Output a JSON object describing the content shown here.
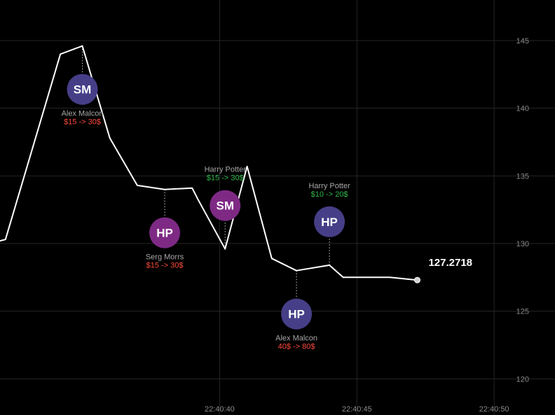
{
  "chart_data": {
    "type": "line",
    "x_labels": [
      "22:40:40",
      "22:40:45",
      "22:40:50"
    ],
    "x_label_times": [
      8,
      13,
      18
    ],
    "y_ticks": [
      120,
      125,
      130,
      135,
      140,
      145
    ],
    "xlim": [
      0,
      19.4
    ],
    "ylim": [
      118,
      148
    ],
    "grid": true,
    "series": [
      {
        "x": [
          0,
          0.2,
          2.2,
          3.0,
          4.0,
          5.0,
          6.0,
          7.0,
          7.2,
          8.2,
          9.0,
          9.9,
          10.8,
          12.0,
          12.5,
          13.0,
          14.2,
          15.2
        ],
        "y": [
          130.2,
          130.3,
          144.0,
          144.6,
          137.8,
          134.3,
          134.0,
          134.1,
          133.3,
          129.6,
          135.7,
          128.9,
          128.0,
          128.4,
          127.5,
          127.5,
          127.5,
          127.3
        ]
      }
    ],
    "last_value": "127.2718",
    "markers": [
      {
        "x": 3.0,
        "y": 144.6,
        "initials": "SM",
        "name": "Alex Malcon",
        "trade": "$15 -> 30$",
        "trade_color": "#ff4a3d",
        "fill": "#463f88",
        "side": "below",
        "offset": 62
      },
      {
        "x": 6.0,
        "y": 134.0,
        "initials": "HP",
        "name": "Serg Morrs",
        "trade": "$15 -> 30$",
        "trade_color": "#ff4a3d",
        "fill": "#7e2a85",
        "side": "below",
        "offset": 62
      },
      {
        "x": 8.2,
        "y": 129.6,
        "initials": "SM",
        "name": "Harry Potter",
        "trade": "$15 -> 30$",
        "trade_color": "#2fb84a",
        "fill": "#7e2a85",
        "side": "above",
        "offset": 62
      },
      {
        "x": 10.8,
        "y": 128.0,
        "initials": "HP",
        "name": "Alex Malcon",
        "trade": "40$ -> 80$",
        "trade_color": "#ff4a3d",
        "fill": "#463f88",
        "side": "below",
        "offset": 62
      },
      {
        "x": 12.0,
        "y": 128.4,
        "initials": "HP",
        "name": "Harry Potter",
        "trade": "$10 -> 20$",
        "trade_color": "#2fb84a",
        "fill": "#463f88",
        "side": "above",
        "offset": 62
      }
    ]
  }
}
